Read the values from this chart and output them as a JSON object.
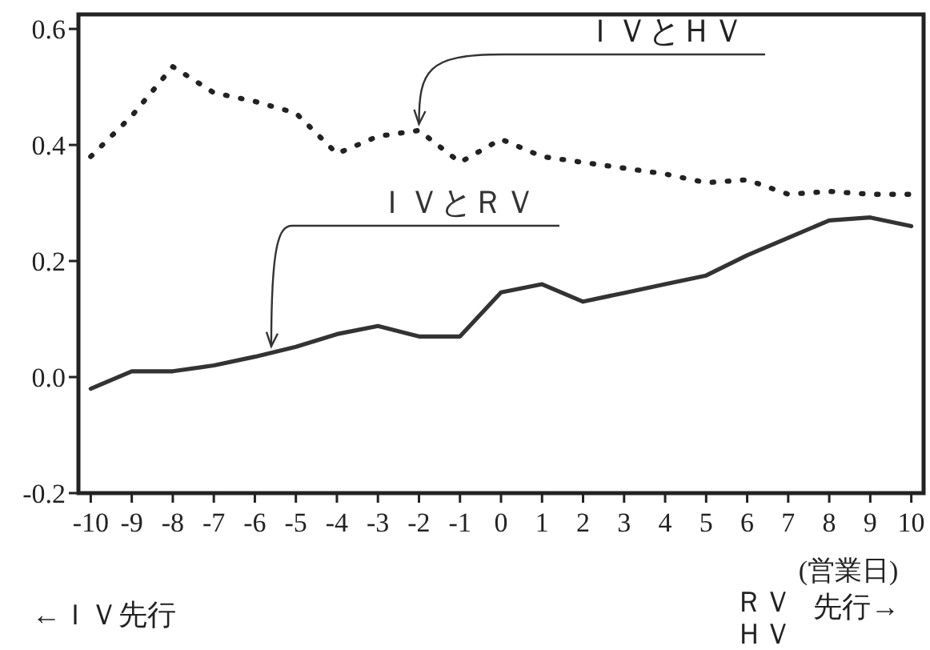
{
  "chart_data": {
    "type": "line",
    "x": [
      -10,
      -9,
      -8,
      -7,
      -6,
      -5,
      -4,
      -3,
      -2,
      -1,
      0,
      1,
      2,
      3,
      4,
      5,
      6,
      7,
      8,
      9,
      10
    ],
    "xlim": [
      -10.3,
      10.3
    ],
    "ylim": [
      -0.2,
      0.625
    ],
    "xticks": [
      -10,
      -9,
      -8,
      -7,
      -6,
      -5,
      -4,
      -3,
      -2,
      -1,
      0,
      1,
      2,
      3,
      4,
      5,
      6,
      7,
      8,
      9,
      10
    ],
    "yticks": [
      {
        "value": -0.2,
        "label": "-0.2"
      },
      {
        "value": 0,
        "label": "0.0"
      },
      {
        "value": 0.2,
        "label": "0.2"
      },
      {
        "value": 0.4,
        "label": "0.4"
      },
      {
        "value": 0.6,
        "label": "0.6"
      }
    ],
    "xlabel": "(営業日)",
    "series": [
      {
        "name": "ＩＶとＨＶ",
        "color": "#222222",
        "line_style": "dotted",
        "values": [
          0.38,
          0.45,
          0.535,
          0.49,
          0.475,
          0.455,
          0.385,
          0.415,
          0.425,
          0.37,
          0.41,
          0.38,
          0.37,
          0.36,
          0.35,
          0.335,
          0.34,
          0.315,
          0.32,
          0.315,
          0.315
        ]
      },
      {
        "name": "ＩＶとＲＶ",
        "color": "#333333",
        "line_style": "solid",
        "values": [
          -0.02,
          0.01,
          0.01,
          0.02,
          0.035,
          0.052,
          0.074,
          0.088,
          0.07,
          0.07,
          0.146,
          0.16,
          0.13,
          0.145,
          0.16,
          0.175,
          0.21,
          0.24,
          0.27,
          0.275,
          0.26
        ]
      }
    ],
    "annotations": [
      "←ＩＶ先行",
      "ＲＶ",
      "ＨＶ",
      "先行→"
    ],
    "marker": "none",
    "grid": false
  }
}
